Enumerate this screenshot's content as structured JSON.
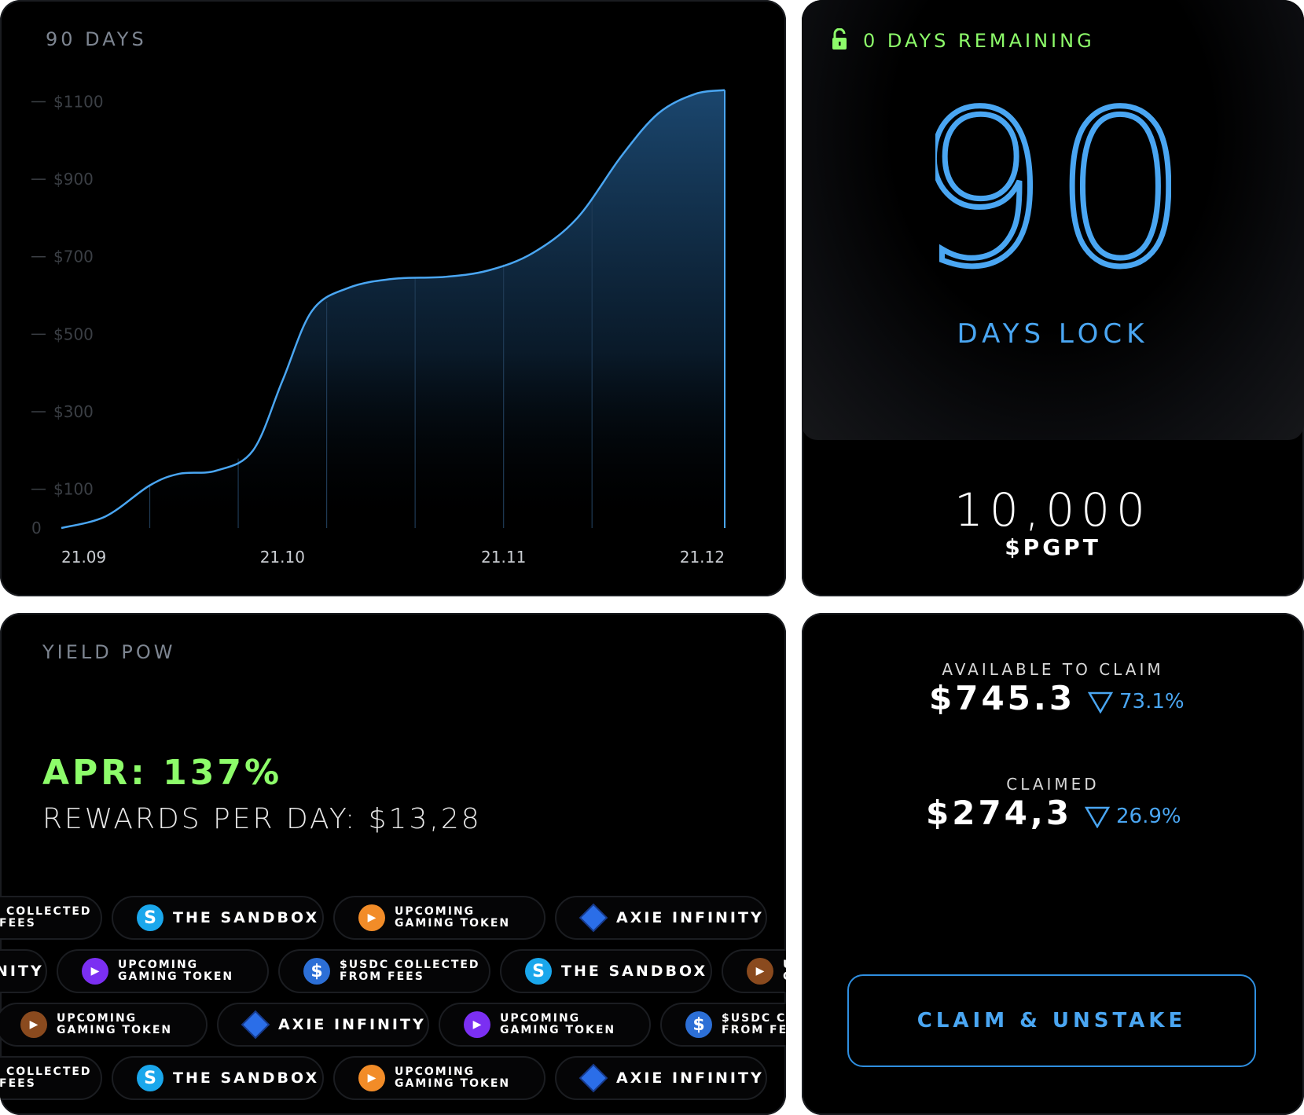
{
  "chart_card": {
    "title": "90 DAYS"
  },
  "chart_data": {
    "type": "area",
    "x_ticks": [
      "21.09",
      "21.10",
      "21.11",
      "21.12"
    ],
    "y_ticks": [
      "$1100",
      "$900",
      "$700",
      "$500",
      "$300",
      "$100",
      "0"
    ],
    "ylim": [
      0,
      1180
    ],
    "points": [
      {
        "x": 0,
        "y": 0
      },
      {
        "x": 6,
        "y": 30
      },
      {
        "x": 12,
        "y": 110
      },
      {
        "x": 16,
        "y": 140
      },
      {
        "x": 21,
        "y": 148
      },
      {
        "x": 26,
        "y": 200
      },
      {
        "x": 30,
        "y": 380
      },
      {
        "x": 34,
        "y": 560
      },
      {
        "x": 39,
        "y": 620
      },
      {
        "x": 45,
        "y": 643
      },
      {
        "x": 52,
        "y": 648
      },
      {
        "x": 58,
        "y": 665
      },
      {
        "x": 64,
        "y": 710
      },
      {
        "x": 70,
        "y": 800
      },
      {
        "x": 76,
        "y": 960
      },
      {
        "x": 81,
        "y": 1070
      },
      {
        "x": 86,
        "y": 1120
      },
      {
        "x": 90,
        "y": 1130
      }
    ],
    "line_color": "#4aa6f2",
    "grid": false
  },
  "lock_card": {
    "remaining": "0 DAYS REMAINING",
    "lock_days": "90",
    "lock_label": "DAYS LOCK",
    "amount": "10,000",
    "token": "$PGPT"
  },
  "yield_card": {
    "title": "YIELD POW",
    "apr": "APR: 137%",
    "rewards": "REWARDS PER DAY: $13,28",
    "rows": [
      {
        "offset": -140,
        "items": [
          {
            "icon": "usdc",
            "lines": [
              "$USDC COLLECTED",
              "FROM FEES"
            ]
          },
          {
            "icon": "sand",
            "lines": [
              "THE SANDBOX"
            ]
          },
          {
            "icon": "orange",
            "lines": [
              "UPCOMING",
              "GAMING TOKEN"
            ]
          },
          {
            "icon": "axie",
            "lines": [
              "AXIE INFINITY"
            ]
          }
        ]
      },
      {
        "offset": -210,
        "items": [
          {
            "icon": "axie",
            "lines": [
              "AXIE INFINITY"
            ]
          },
          {
            "icon": "purple",
            "lines": [
              "UPCOMING",
              "GAMING TOKEN"
            ]
          },
          {
            "icon": "usdc",
            "lines": [
              "$USDC COLLECTED",
              "FROM FEES"
            ]
          },
          {
            "icon": "sand",
            "lines": [
              "THE SANDBOX"
            ]
          },
          {
            "icon": "brown",
            "lines": [
              "UPCOMING",
              "GAMING TOKEN"
            ]
          }
        ]
      },
      {
        "offset": -6,
        "items": [
          {
            "icon": "brown",
            "lines": [
              "UPCOMING",
              "GAMING TOKEN"
            ]
          },
          {
            "icon": "axie",
            "lines": [
              "AXIE INFINITY"
            ]
          },
          {
            "icon": "purple",
            "lines": [
              "UPCOMING",
              "GAMING TOKEN"
            ]
          },
          {
            "icon": "usdc",
            "lines": [
              "$USDC COLLECTED",
              "FROM FEES"
            ]
          }
        ]
      },
      {
        "offset": -140,
        "items": [
          {
            "icon": "usdc",
            "lines": [
              "$USDC COLLECTED",
              "FROM FEES"
            ]
          },
          {
            "icon": "sand",
            "lines": [
              "THE SANDBOX"
            ]
          },
          {
            "icon": "orange",
            "lines": [
              "UPCOMING",
              "GAMING TOKEN"
            ]
          },
          {
            "icon": "axie",
            "lines": [
              "AXIE INFINITY"
            ]
          }
        ]
      }
    ]
  },
  "claim_card": {
    "available_label": "AVAILABLE TO CLAIM",
    "available_value": "$745.3",
    "available_pct": "73.1%",
    "claimed_label": "CLAIMED",
    "claimed_value": "$274,3",
    "claimed_pct": "26.9%",
    "button": "CLAIM & UNSTAKE"
  },
  "colors": {
    "accent_blue": "#4aa6f2",
    "accent_green": "#8dfc6a"
  }
}
